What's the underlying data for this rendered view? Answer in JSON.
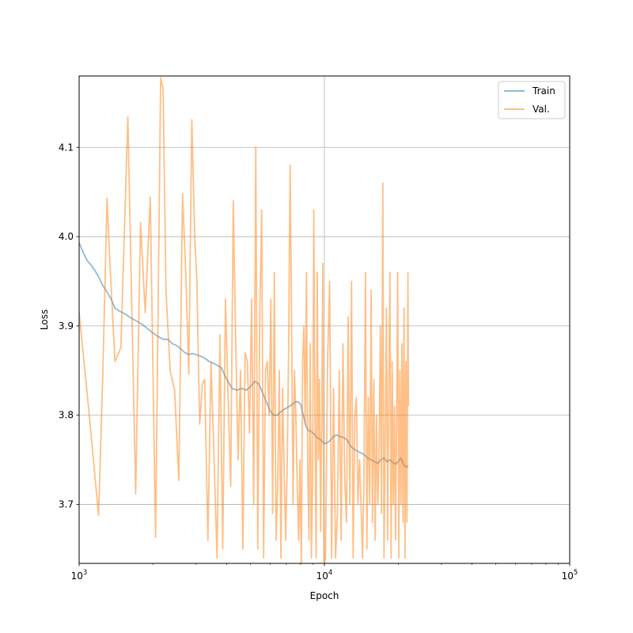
{
  "chart_data": {
    "type": "line",
    "title": "",
    "xlabel": "Epoch",
    "ylabel": "Loss",
    "xscale": "log",
    "xlim": [
      1000,
      100000
    ],
    "ylim": [
      3.634,
      4.18
    ],
    "grid": true,
    "legend_position": "top-right",
    "x_ticks": [
      {
        "value": 1000,
        "base": "10",
        "exp": "3"
      },
      {
        "value": 10000,
        "base": "10",
        "exp": "4"
      },
      {
        "value": 100000,
        "base": "10",
        "exp": "5"
      }
    ],
    "y_ticks": [
      {
        "value": 3.7,
        "label": "3.7"
      },
      {
        "value": 3.8,
        "label": "3.8"
      },
      {
        "value": 3.9,
        "label": "3.9"
      },
      {
        "value": 4.0,
        "label": "4.0"
      },
      {
        "value": 4.1,
        "label": "4.1"
      }
    ],
    "series": [
      {
        "name": "Train",
        "color": "#1f77b4",
        "opacity": 0.5,
        "x": [
          1000,
          1040,
          1080,
          1120,
          1160,
          1200,
          1250,
          1300,
          1350,
          1400,
          1450,
          1500,
          1550,
          1600,
          1700,
          1800,
          1900,
          2000,
          2100,
          2200,
          2300,
          2400,
          2500,
          2600,
          2700,
          2800,
          2900,
          3000,
          3200,
          3400,
          3600,
          3800,
          4000,
          4200,
          4400,
          4600,
          4800,
          5000,
          5200,
          5400,
          5600,
          5800,
          6000,
          6200,
          6400,
          6600,
          6800,
          7000,
          7200,
          7400,
          7600,
          7800,
          8000,
          8200,
          8400,
          8600,
          8800,
          9000,
          9300,
          9600,
          10000,
          10400,
          10800,
          11200,
          11600,
          12000,
          12400,
          12800,
          13200,
          13600,
          14000,
          14500,
          15000,
          15500,
          16000,
          16500,
          17000,
          17500,
          18000,
          18500,
          19000,
          19500,
          20000,
          20500,
          21000,
          21500,
          22000
        ],
        "values": [
          3.993,
          3.982,
          3.973,
          3.968,
          3.962,
          3.955,
          3.945,
          3.938,
          3.93,
          3.92,
          3.917,
          3.915,
          3.913,
          3.91,
          3.906,
          3.902,
          3.897,
          3.892,
          3.888,
          3.885,
          3.885,
          3.88,
          3.878,
          3.874,
          3.87,
          3.868,
          3.869,
          3.868,
          3.865,
          3.86,
          3.857,
          3.853,
          3.84,
          3.83,
          3.828,
          3.83,
          3.828,
          3.832,
          3.838,
          3.835,
          3.825,
          3.815,
          3.805,
          3.8,
          3.8,
          3.803,
          3.806,
          3.808,
          3.81,
          3.812,
          3.815,
          3.815,
          3.812,
          3.8,
          3.788,
          3.783,
          3.782,
          3.78,
          3.775,
          3.773,
          3.768,
          3.77,
          3.775,
          3.778,
          3.776,
          3.775,
          3.772,
          3.765,
          3.762,
          3.76,
          3.758,
          3.756,
          3.752,
          3.75,
          3.748,
          3.746,
          3.75,
          3.752,
          3.748,
          3.75,
          3.747,
          3.745,
          3.748,
          3.752,
          3.745,
          3.742,
          3.743
        ]
      },
      {
        "name": "Val.",
        "color": "#ff7f0e",
        "opacity": 0.5,
        "x": [
          1000,
          1100,
          1200,
          1250,
          1300,
          1330,
          1400,
          1480,
          1580,
          1700,
          1780,
          1860,
          1950,
          2050,
          2150,
          2200,
          2260,
          2350,
          2450,
          2550,
          2640,
          2720,
          2800,
          2880,
          2960,
          3020,
          3100,
          3180,
          3250,
          3350,
          3450,
          3550,
          3650,
          3750,
          3850,
          3950,
          4050,
          4150,
          4250,
          4350,
          4450,
          4550,
          4650,
          4750,
          4850,
          4950,
          5050,
          5150,
          5250,
          5350,
          5450,
          5550,
          5650,
          5750,
          5850,
          5950,
          6050,
          6150,
          6250,
          6350,
          6450,
          6550,
          6650,
          6750,
          6850,
          6950,
          7050,
          7150,
          7250,
          7350,
          7450,
          7550,
          7650,
          7750,
          7850,
          7950,
          8050,
          8150,
          8250,
          8350,
          8450,
          8550,
          8650,
          8750,
          8850,
          8950,
          9050,
          9150,
          9250,
          9350,
          9450,
          9550,
          9650,
          9750,
          9850,
          9950,
          10100,
          10300,
          10500,
          10700,
          10900,
          11100,
          11300,
          11500,
          11700,
          11900,
          12100,
          12300,
          12500,
          12700,
          12900,
          13100,
          13300,
          13500,
          13700,
          13900,
          14100,
          14300,
          14500,
          14700,
          14900,
          15100,
          15300,
          15500,
          15700,
          15900,
          16100,
          16300,
          16500,
          16700,
          16900,
          17100,
          17300,
          17500,
          17700,
          17900,
          18100,
          18300,
          18500,
          18700,
          18900,
          19100,
          19300,
          19500,
          19700,
          19900,
          20100,
          20300,
          20500,
          20700,
          20900,
          21100,
          21300,
          21500,
          21700,
          21900,
          22000
        ],
        "values": [
          3.915,
          3.8,
          3.688,
          3.85,
          4.043,
          3.98,
          3.86,
          3.876,
          4.134,
          3.712,
          4.016,
          3.915,
          4.044,
          3.663,
          4.178,
          4.165,
          3.94,
          3.85,
          3.828,
          3.727,
          4.048,
          3.96,
          3.846,
          4.131,
          4.0,
          3.95,
          3.79,
          3.835,
          3.84,
          3.66,
          3.86,
          3.75,
          3.64,
          3.89,
          3.65,
          3.93,
          3.82,
          3.72,
          4.04,
          3.88,
          3.75,
          3.85,
          3.65,
          3.87,
          3.86,
          3.78,
          3.93,
          3.7,
          4.1,
          3.65,
          3.91,
          4.03,
          3.64,
          3.85,
          3.86,
          3.8,
          3.93,
          3.69,
          3.96,
          3.66,
          3.72,
          3.85,
          3.64,
          3.83,
          3.74,
          3.66,
          3.74,
          3.88,
          4.08,
          3.9,
          3.7,
          3.85,
          3.8,
          3.72,
          3.66,
          3.75,
          3.63,
          3.86,
          3.9,
          3.79,
          3.96,
          3.74,
          3.66,
          3.88,
          3.64,
          3.73,
          4.03,
          3.8,
          3.64,
          3.96,
          3.75,
          3.84,
          3.67,
          3.79,
          3.97,
          3.63,
          3.64,
          3.86,
          3.95,
          3.64,
          3.83,
          3.64,
          3.69,
          3.85,
          3.66,
          3.88,
          3.73,
          3.68,
          3.91,
          3.7,
          3.95,
          3.64,
          3.8,
          3.82,
          3.7,
          3.75,
          3.7,
          3.64,
          3.73,
          3.96,
          3.65,
          3.82,
          3.7,
          3.94,
          3.68,
          3.84,
          3.66,
          3.8,
          3.7,
          3.75,
          3.9,
          3.69,
          4.06,
          3.64,
          3.78,
          3.92,
          3.66,
          3.83,
          3.96,
          3.64,
          3.86,
          3.7,
          3.81,
          3.66,
          3.8,
          3.96,
          3.64,
          3.85,
          3.7,
          3.88,
          3.68,
          3.92,
          3.64,
          3.86,
          3.68,
          3.96,
          3.81
        ]
      }
    ]
  }
}
